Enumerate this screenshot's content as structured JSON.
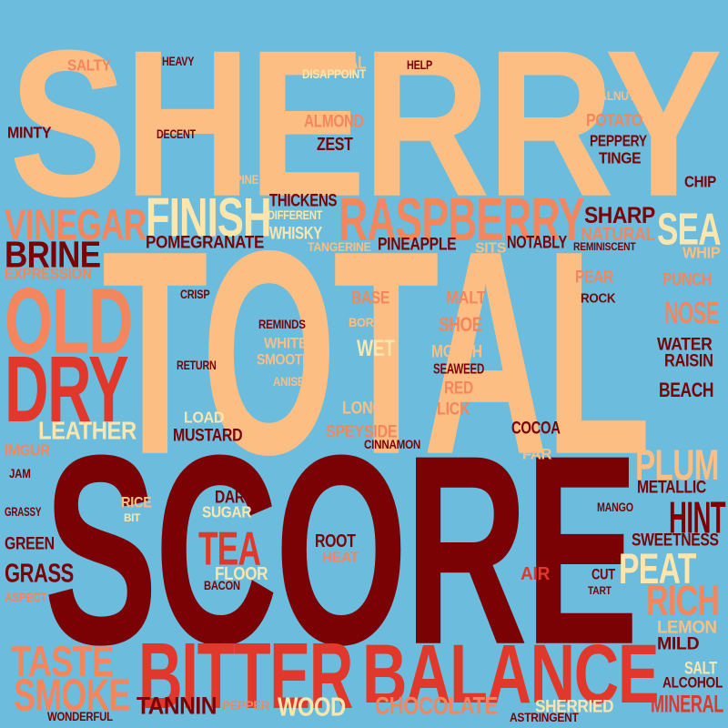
{
  "palette": {
    "background": "#6cbcdd",
    "peach": "#fdbe83",
    "cream": "#fde6ad",
    "salmon": "#f4865e",
    "red": "#e0382a",
    "maroon": "#7a0104"
  },
  "words": [
    {
      "text": "SHERRY",
      "color": "peach"
    },
    {
      "text": "TOTAL",
      "color": "peach"
    },
    {
      "text": "SCORE",
      "color": "maroon"
    },
    {
      "text": "BITTER",
      "color": "red"
    },
    {
      "text": "BALANCE",
      "color": "red"
    },
    {
      "text": "OLD",
      "color": "salmon"
    },
    {
      "text": "DRY",
      "color": "red"
    },
    {
      "text": "RASPBERRY",
      "color": "salmon"
    },
    {
      "text": "FINISH",
      "color": "cream"
    },
    {
      "text": "VINEGAR",
      "color": "salmon"
    },
    {
      "text": "BRINE",
      "color": "maroon"
    },
    {
      "text": "SEA",
      "color": "cream"
    },
    {
      "text": "HINT",
      "color": "maroon"
    },
    {
      "text": "PLUM",
      "color": "peach"
    },
    {
      "text": "PEAT",
      "color": "cream"
    },
    {
      "text": "RICH",
      "color": "salmon"
    },
    {
      "text": "TASTE",
      "color": "salmon"
    },
    {
      "text": "SMOKE",
      "color": "salmon"
    },
    {
      "text": "TEA",
      "color": "red"
    },
    {
      "text": "NOSE",
      "color": "salmon"
    },
    {
      "text": "LEATHER",
      "color": "cream"
    },
    {
      "text": "GRASS",
      "color": "maroon"
    },
    {
      "text": "MINERAL",
      "color": "red"
    },
    {
      "text": "CHOCOLATE",
      "color": "salmon"
    },
    {
      "text": "WOOD",
      "color": "cream"
    },
    {
      "text": "TANNIN",
      "color": "maroon"
    },
    {
      "text": "SHARP",
      "color": "maroon"
    },
    {
      "text": "SALTY",
      "color": "salmon"
    },
    {
      "text": "HEAVY",
      "color": "maroon"
    },
    {
      "text": "TROPICAL",
      "color": "peach"
    },
    {
      "text": "DISAPPOINT",
      "color": "cream"
    },
    {
      "text": "HELP",
      "color": "maroon"
    },
    {
      "text": "WALNUT",
      "color": "peach"
    },
    {
      "text": "MINTY",
      "color": "maroon"
    },
    {
      "text": "DECENT",
      "color": "maroon"
    },
    {
      "text": "ALMOND",
      "color": "salmon"
    },
    {
      "text": "ZEST",
      "color": "maroon"
    },
    {
      "text": "POTATO",
      "color": "salmon"
    },
    {
      "text": "PEPPERY",
      "color": "maroon"
    },
    {
      "text": "TINGE",
      "color": "maroon"
    },
    {
      "text": "CHIP",
      "color": "maroon"
    },
    {
      "text": "PINE",
      "color": "peach"
    },
    {
      "text": "THICKENS",
      "color": "maroon"
    },
    {
      "text": "DIFFERENT",
      "color": "cream"
    },
    {
      "text": "WHISKY",
      "color": "cream"
    },
    {
      "text": "POMEGRANATE",
      "color": "maroon"
    },
    {
      "text": "TANGERINE",
      "color": "peach"
    },
    {
      "text": "PINEAPPLE",
      "color": "maroon"
    },
    {
      "text": "SITS",
      "color": "peach"
    },
    {
      "text": "NOTABLY",
      "color": "maroon"
    },
    {
      "text": "NATURAL",
      "color": "salmon"
    },
    {
      "text": "REMINISCENT",
      "color": "maroon"
    },
    {
      "text": "WHIP",
      "color": "peach"
    },
    {
      "text": "EXPRESSION",
      "color": "salmon"
    },
    {
      "text": "CRISP",
      "color": "maroon"
    },
    {
      "text": "BASE",
      "color": "salmon"
    },
    {
      "text": "MALT",
      "color": "salmon"
    },
    {
      "text": "PEAR",
      "color": "salmon"
    },
    {
      "text": "ROCK",
      "color": "maroon"
    },
    {
      "text": "PUNCH",
      "color": "salmon"
    },
    {
      "text": "REMINDS",
      "color": "maroon"
    },
    {
      "text": "BORING",
      "color": "peach"
    },
    {
      "text": "SHOE",
      "color": "salmon"
    },
    {
      "text": "WHITE",
      "color": "peach"
    },
    {
      "text": "SMOOTH",
      "color": "peach"
    },
    {
      "text": "WET",
      "color": "cream"
    },
    {
      "text": "MOUTH",
      "color": "peach"
    },
    {
      "text": "WATER",
      "color": "maroon"
    },
    {
      "text": "RAISIN",
      "color": "maroon"
    },
    {
      "text": "RETURN",
      "color": "maroon"
    },
    {
      "text": "ANISE",
      "color": "peach"
    },
    {
      "text": "SEAWEED",
      "color": "maroon"
    },
    {
      "text": "RED",
      "color": "salmon"
    },
    {
      "text": "LICK",
      "color": "salmon"
    },
    {
      "text": "BEACH",
      "color": "maroon"
    },
    {
      "text": "LOAD",
      "color": "cream"
    },
    {
      "text": "MUSTARD",
      "color": "maroon"
    },
    {
      "text": "LONG",
      "color": "peach"
    },
    {
      "text": "SPEYSIDE",
      "color": "salmon"
    },
    {
      "text": "COCOA",
      "color": "maroon"
    },
    {
      "text": "CINNAMON",
      "color": "maroon"
    },
    {
      "text": "IMGUR",
      "color": "salmon"
    },
    {
      "text": "FAR",
      "color": "peach"
    },
    {
      "text": "JAM",
      "color": "maroon"
    },
    {
      "text": "METALLIC",
      "color": "maroon"
    },
    {
      "text": "RICE",
      "color": "peach"
    },
    {
      "text": "DARK",
      "color": "maroon"
    },
    {
      "text": "SUGAR",
      "color": "cream"
    },
    {
      "text": "GRASSY",
      "color": "maroon"
    },
    {
      "text": "BIT",
      "color": "cream"
    },
    {
      "text": "MANGO",
      "color": "maroon"
    },
    {
      "text": "SWEETNESS",
      "color": "maroon"
    },
    {
      "text": "GREEN",
      "color": "maroon"
    },
    {
      "text": "ROOT",
      "color": "maroon"
    },
    {
      "text": "HEAT",
      "color": "salmon"
    },
    {
      "text": "FLOOR",
      "color": "cream"
    },
    {
      "text": "AIR",
      "color": "red"
    },
    {
      "text": "CUT",
      "color": "maroon"
    },
    {
      "text": "TART",
      "color": "maroon"
    },
    {
      "text": "ASPECT",
      "color": "salmon"
    },
    {
      "text": "BACON",
      "color": "maroon"
    },
    {
      "text": "LEMON",
      "color": "peach"
    },
    {
      "text": "MILD",
      "color": "maroon"
    },
    {
      "text": "SALT",
      "color": "cream"
    },
    {
      "text": "ALCOHOL",
      "color": "maroon"
    },
    {
      "text": "PEPPER",
      "color": "salmon"
    },
    {
      "text": "SHERRIED",
      "color": "cream"
    },
    {
      "text": "WONDERFUL",
      "color": "maroon"
    },
    {
      "text": "ASTRINGENT",
      "color": "maroon"
    }
  ]
}
